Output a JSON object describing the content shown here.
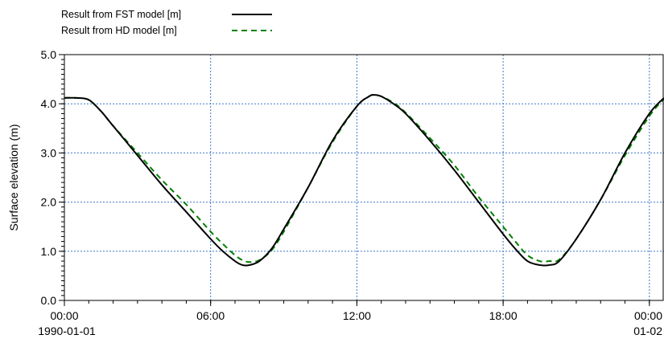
{
  "chart_data": {
    "type": "line",
    "title": "",
    "xlabel": "",
    "ylabel": "Surface elevation (m)",
    "ylim": [
      0.0,
      5.0
    ],
    "yticks": [
      "0.0",
      "1.0",
      "2.0",
      "3.0",
      "4.0",
      "5.0"
    ],
    "xlim_hours": [
      0,
      24.6
    ],
    "xticks": [
      {
        "hour": 0,
        "label": "00:00",
        "sublabel": "1990-01-01"
      },
      {
        "hour": 6,
        "label": "06:00",
        "sublabel": ""
      },
      {
        "hour": 12,
        "label": "12:00",
        "sublabel": ""
      },
      {
        "hour": 18,
        "label": "18:00",
        "sublabel": ""
      },
      {
        "hour": 24,
        "label": "00:00",
        "sublabel": "01-02"
      }
    ],
    "grid": true,
    "legend_position": "top-left",
    "colors": {
      "grid": "#3b78c8",
      "fst": "#000000",
      "hd": "#008000"
    },
    "series": [
      {
        "name": "Result from FST model [m]",
        "style": "solid",
        "x": [
          0,
          0.5,
          1.0,
          1.5,
          2.0,
          3.0,
          4.0,
          5.0,
          6.0,
          6.5,
          7.0,
          7.3,
          7.6,
          8.0,
          8.5,
          9.0,
          10.0,
          11.0,
          12.0,
          12.5,
          12.7,
          13.0,
          13.5,
          14.0,
          15.0,
          16.0,
          17.0,
          18.0,
          18.5,
          19.0,
          19.5,
          19.9,
          20.3,
          21.0,
          22.0,
          23.0,
          24.0,
          24.6
        ],
        "y": [
          4.12,
          4.12,
          4.08,
          3.85,
          3.55,
          2.95,
          2.35,
          1.8,
          1.25,
          1.0,
          0.8,
          0.72,
          0.72,
          0.8,
          1.05,
          1.45,
          2.3,
          3.25,
          3.95,
          4.15,
          4.18,
          4.15,
          4.0,
          3.8,
          3.25,
          2.65,
          2.0,
          1.35,
          1.05,
          0.8,
          0.72,
          0.72,
          0.8,
          1.25,
          2.05,
          3.0,
          3.8,
          4.12
        ]
      },
      {
        "name": "Result from HD model   [m]",
        "style": "dashed",
        "x": [
          0,
          0.5,
          1.0,
          1.5,
          2.0,
          3.0,
          4.0,
          5.0,
          6.0,
          6.5,
          7.0,
          7.3,
          7.6,
          8.0,
          8.5,
          9.0,
          10.0,
          11.0,
          12.0,
          12.5,
          12.7,
          13.0,
          13.5,
          14.0,
          15.0,
          16.0,
          17.0,
          18.0,
          18.5,
          19.0,
          19.5,
          19.9,
          20.3,
          21.0,
          22.0,
          23.0,
          24.0,
          24.6
        ],
        "y": [
          4.12,
          4.12,
          4.08,
          3.85,
          3.55,
          3.0,
          2.45,
          1.95,
          1.4,
          1.15,
          0.92,
          0.82,
          0.78,
          0.82,
          1.02,
          1.4,
          2.3,
          3.22,
          3.95,
          4.15,
          4.18,
          4.15,
          4.02,
          3.82,
          3.3,
          2.75,
          2.1,
          1.5,
          1.2,
          0.92,
          0.8,
          0.8,
          0.83,
          1.25,
          2.05,
          2.95,
          3.75,
          4.1
        ]
      }
    ]
  }
}
